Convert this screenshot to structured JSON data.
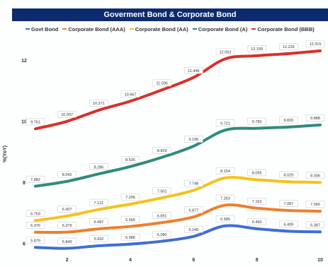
{
  "chart_data": {
    "type": "line",
    "title": "Goverment Bond & Corporate Bond",
    "ylabel": "%(YoY)",
    "xlabel": "",
    "x": [
      1,
      2,
      3,
      4,
      5,
      6,
      7,
      8,
      9,
      10
    ],
    "xticks": [
      "2",
      "4",
      "6",
      "8",
      "10"
    ],
    "yticks": [
      "6",
      "8",
      "10",
      "12"
    ],
    "xlim": [
      1,
      10
    ],
    "ylim": [
      5.7,
      12.5
    ],
    "legend_position": "top",
    "grid": false,
    "series": [
      {
        "name": "Govt Bond",
        "color": "#3f6fd1",
        "values": [
          5.879,
          5.849,
          5.932,
          5.986,
          6.08,
          6.24,
          6.585,
          6.49,
          6.409,
          6.387
        ],
        "labels": [
          "5.879",
          "5.849",
          "5.932",
          "5.986",
          "6.080",
          "6.240",
          "6.585",
          "6.490",
          "6.409",
          "6.387"
        ]
      },
      {
        "name": "Corporate Bond (AAA)",
        "color": "#ef7f2b",
        "values": [
          6.376,
          6.379,
          6.487,
          6.566,
          6.691,
          6.877,
          7.263,
          7.162,
          7.087,
          7.066
        ],
        "labels": [
          "6.376",
          "6.379",
          "6.487",
          "6.566",
          "6.691",
          "6.877",
          "7.263",
          "7.162",
          "7.087",
          "7.066"
        ]
      },
      {
        "name": "Corporate Bond (AA)",
        "color": "#f6c21a",
        "values": [
          6.759,
          6.907,
          7.121,
          7.296,
          7.501,
          7.748,
          8.154,
          8.095,
          8.029,
          8.006
        ],
        "labels": [
          "6.759",
          "6.907",
          "7.121",
          "7.296",
          "7.501",
          "7.748",
          "8.154",
          "8.095",
          "8.029",
          "8.006"
        ]
      },
      {
        "name": "Corporate Bond (A)",
        "color": "#2e8b7e",
        "values": [
          7.882,
          8.042,
          8.286,
          8.526,
          8.829,
          9.195,
          9.721,
          9.78,
          9.82,
          9.888
        ],
        "labels": [
          "7.882",
          "8.042",
          "8.286",
          "8.526",
          "8.829",
          "9.195",
          "9.721",
          "9.780",
          "9.820",
          "9.888"
        ]
      },
      {
        "name": "Corporate Bond (BBB)",
        "color": "#d9302b",
        "values": [
          9.761,
          10.007,
          10.371,
          10.667,
          11.036,
          11.446,
          12.052,
          12.155,
          12.226,
          12.315
        ],
        "labels": [
          "9.761",
          "10.007",
          "10.371",
          "10.667",
          "11.036",
          "11.446",
          "12.052",
          "12.155",
          "12.226",
          "12.315"
        ]
      }
    ]
  }
}
